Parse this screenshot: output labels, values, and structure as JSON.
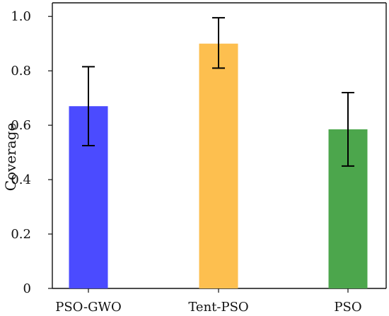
{
  "chart_data": {
    "type": "bar",
    "title": "",
    "xlabel": "",
    "ylabel": "Coverage",
    "categories": [
      "PSO-GWO",
      "Tent-PSO",
      "PSO"
    ],
    "series": [
      {
        "values": [
          0.67,
          0.9,
          0.585
        ],
        "error_low": [
          0.525,
          0.81,
          0.45
        ],
        "error_high": [
          0.815,
          0.995,
          0.72
        ]
      }
    ],
    "colors": [
      "#4b4bff",
      "#fdbf4f",
      "#4ca64c"
    ],
    "ylim": [
      0,
      1.05
    ],
    "yticks": [
      0,
      0.2,
      0.4,
      0.6,
      0.8,
      1.0
    ],
    "ytick_labels": [
      "0",
      "0.2",
      "0.4",
      "0.6",
      "0.8",
      "1.0"
    ],
    "grid": false,
    "legend": "none"
  }
}
